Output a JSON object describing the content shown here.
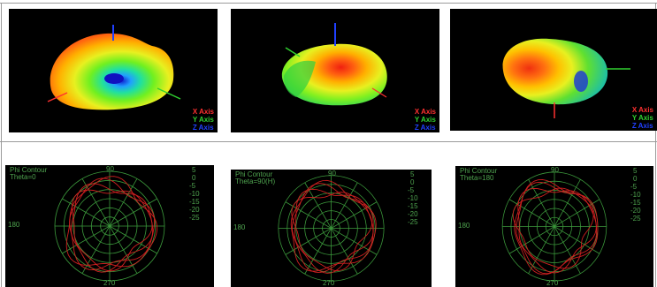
{
  "colors": {
    "background": "#000000",
    "x_axis": "#ff3030",
    "y_axis": "#30d030",
    "z_axis": "#2040ff",
    "polar_grid": "#3c9a3c",
    "contour": "#d02020"
  },
  "patterns_3d": [
    {
      "legend": {
        "x": "X Axis",
        "y": "Y Axis",
        "z": "Z Axis"
      }
    },
    {
      "legend": {
        "x": "X Axis",
        "y": "Y Axis",
        "z": "Z Axis"
      }
    },
    {
      "legend": {
        "x": "X Axis",
        "y": "Y Axis",
        "z": "Z Axis"
      }
    }
  ],
  "polar_plots": [
    {
      "title": "Phi Contour",
      "subtitle": "Theta=0"
    },
    {
      "title": "Phi Contour",
      "subtitle": "Theta=90(H)"
    },
    {
      "title": "Phi Contour",
      "subtitle": "Theta=180"
    }
  ],
  "polar_axis": {
    "angle_top": "90",
    "angle_left": "180",
    "angle_bottom": "270",
    "radial_ticks": [
      "5",
      "0",
      "-5",
      "-10",
      "-15",
      "-20",
      "-25"
    ]
  }
}
